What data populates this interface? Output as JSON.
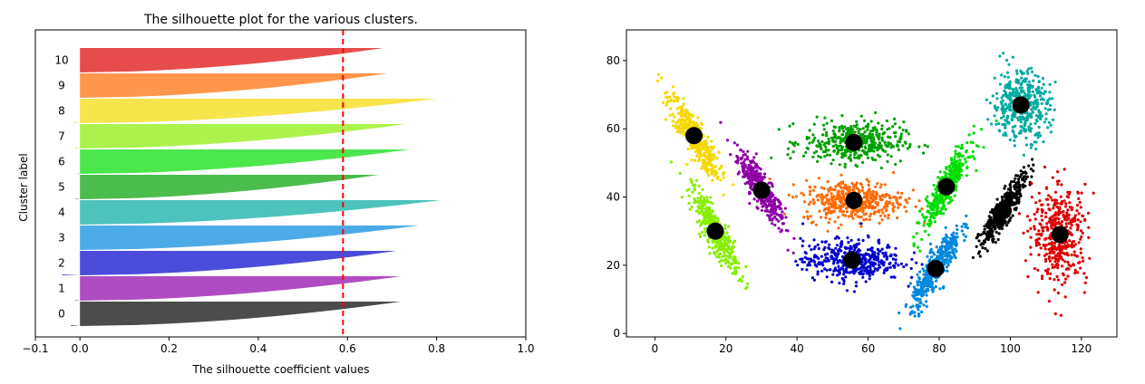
{
  "chart_data": [
    {
      "type": "area",
      "title": "The silhouette plot for the various clusters.",
      "xlabel": "The silhouette coefficient values",
      "ylabel": "Cluster label",
      "xlim": [
        -0.1,
        1.0
      ],
      "xticks": [
        -0.1,
        0.0,
        0.2,
        0.4,
        0.6,
        0.8,
        1.0
      ],
      "xtick_labels": [
        "−0.1",
        "0.0",
        "0.2",
        "0.4",
        "0.6",
        "0.8",
        "1.0"
      ],
      "average_silhouette": 0.59,
      "reference_line_color": "#ff0000",
      "clusters": [
        {
          "label": "0",
          "min": -0.02,
          "max": 0.72,
          "color": "#000000"
        },
        {
          "label": "1",
          "min": -0.01,
          "max": 0.72,
          "color": "#8e00a6"
        },
        {
          "label": "2",
          "min": -0.04,
          "max": 0.71,
          "color": "#0000cc"
        },
        {
          "label": "3",
          "min": 0.0,
          "max": 0.76,
          "color": "#0088dd"
        },
        {
          "label": "4",
          "min": 0.0,
          "max": 0.81,
          "color": "#00aaa0"
        },
        {
          "label": "5",
          "min": -0.01,
          "max": 0.67,
          "color": "#00a000"
        },
        {
          "label": "6",
          "min": -0.005,
          "max": 0.74,
          "color": "#00dd00"
        },
        {
          "label": "7",
          "min": -0.01,
          "max": 0.73,
          "color": "#88ee00"
        },
        {
          "label": "8",
          "min": -0.015,
          "max": 0.8,
          "color": "#f5d800"
        },
        {
          "label": "9",
          "min": 0.0,
          "max": 0.69,
          "color": "#ff6a00"
        },
        {
          "label": "10",
          "min": 0.0,
          "max": 0.68,
          "color": "#dd0000"
        }
      ]
    },
    {
      "type": "scatter",
      "title": "",
      "xlabel": "",
      "ylabel": "",
      "xlim": [
        -8,
        130
      ],
      "ylim": [
        -1,
        89
      ],
      "xticks": [
        0,
        20,
        40,
        60,
        80,
        100,
        120
      ],
      "yticks": [
        0,
        20,
        40,
        60,
        80
      ],
      "centers_color": "#000000",
      "clusters": [
        {
          "center": [
            30,
            42
          ],
          "color": "#8e00a6",
          "sx": 3.3,
          "sy": 5.5,
          "rho": -0.88
        },
        {
          "center": [
            11,
            58
          ],
          "color": "#f5d800",
          "sx": 3.5,
          "sy": 6.0,
          "rho": -0.88
        },
        {
          "center": [
            17,
            30
          ],
          "color": "#88ee00",
          "sx": 3.3,
          "sy": 6.0,
          "rho": -0.88
        },
        {
          "center": [
            56,
            56
          ],
          "color": "#00a000",
          "sx": 7.0,
          "sy": 3.0,
          "rho": 0
        },
        {
          "center": [
            56,
            39
          ],
          "color": "#ff6a00",
          "sx": 7.0,
          "sy": 3.0,
          "rho": 0
        },
        {
          "center": [
            55.5,
            21.5
          ],
          "color": "#0000cc",
          "sx": 7.0,
          "sy": 3.0,
          "rho": 0
        },
        {
          "center": [
            79,
            19
          ],
          "color": "#0088dd",
          "sx": 3.5,
          "sy": 6.0,
          "rho": 0.88
        },
        {
          "center": [
            82,
            43
          ],
          "color": "#00dd00",
          "sx": 3.3,
          "sy": 5.8,
          "rho": 0.88
        },
        {
          "center": [
            98,
            36
          ],
          "color": "#000000",
          "sx": 3.3,
          "sy": 5.3,
          "rho": 0.9
        },
        {
          "center": [
            103,
            67
          ],
          "color": "#00aaa0",
          "sx": 4.0,
          "sy": 5.0,
          "rho": 0
        },
        {
          "center": [
            114,
            29
          ],
          "color": "#dd0000",
          "sx": 3.8,
          "sy": 7.0,
          "rho": 0
        }
      ]
    }
  ]
}
